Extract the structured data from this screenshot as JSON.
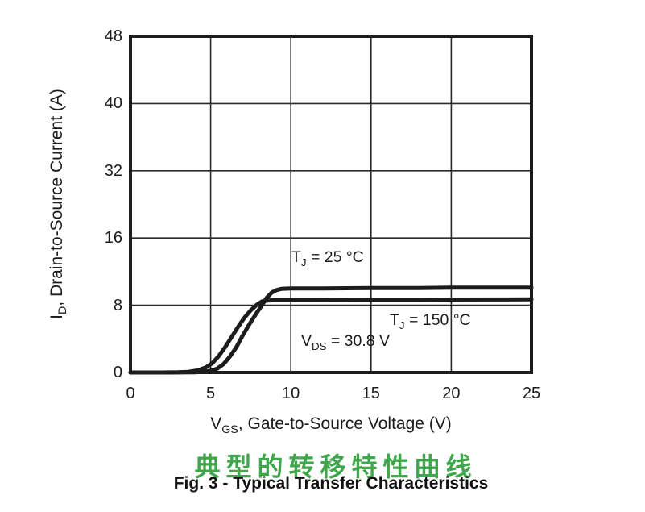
{
  "figure": {
    "title_cn": "典型的转移特性曲线",
    "title_cn_color": "#3fa64c",
    "caption": "Fig. 3 - Typical Transfer Characteristics"
  },
  "axes": {
    "x_title": {
      "pre": "V",
      "sub": "GS",
      "post": ", Gate-to-Source Voltage (V)"
    },
    "y_title": {
      "pre": "I",
      "sub": "D",
      "post": ", Drain-to-Source Current (A)"
    }
  },
  "chart_data": {
    "type": "line",
    "xlabel": "VGS, Gate-to-Source Voltage (V)",
    "ylabel": "ID, Drain-to-Source Current (A)",
    "x_range": [
      0,
      25
    ],
    "x_ticks": [
      0,
      5,
      10,
      15,
      20,
      25
    ],
    "y_tick_labels": [
      0,
      8,
      16,
      32,
      40,
      48
    ],
    "y_axis_note": "tick labels exactly as printed (equal spacing, 24 omitted)",
    "grid": true,
    "frame_color": "#1c1c1c",
    "grid_color": "#2a2a2a",
    "line_color": "#1c1c1c",
    "annotations": [
      {
        "pre": "T",
        "sub": "J",
        "post": " = 25 °C"
      },
      {
        "pre": "T",
        "sub": "J",
        "post": " = 150 °C"
      },
      {
        "pre": "V",
        "sub": "DS",
        "post": " = 30.8 V"
      }
    ],
    "series": [
      {
        "name": "TJ = 25 °C",
        "points": [
          [
            0,
            0
          ],
          [
            2,
            0
          ],
          [
            3,
            0.01
          ],
          [
            4,
            0.03
          ],
          [
            4.5,
            0.08
          ],
          [
            5,
            0.2
          ],
          [
            5.4,
            0.45
          ],
          [
            5.8,
            1.0
          ],
          [
            6.2,
            1.9
          ],
          [
            6.6,
            3.0
          ],
          [
            7,
            4.4
          ],
          [
            7.4,
            5.7
          ],
          [
            7.8,
            6.9
          ],
          [
            8.2,
            8.0
          ],
          [
            8.5,
            8.9
          ],
          [
            8.8,
            9.5
          ],
          [
            9.1,
            9.8
          ],
          [
            9.4,
            9.95
          ],
          [
            10,
            10.0
          ],
          [
            12,
            10.0
          ],
          [
            15,
            10.05
          ],
          [
            18,
            10.05
          ],
          [
            20,
            10.1
          ],
          [
            25,
            10.1
          ]
        ]
      },
      {
        "name": "TJ = 150 °C",
        "points": [
          [
            0,
            0
          ],
          [
            2,
            0
          ],
          [
            3,
            0.02
          ],
          [
            3.6,
            0.08
          ],
          [
            4.2,
            0.25
          ],
          [
            4.7,
            0.6
          ],
          [
            5.1,
            1.1
          ],
          [
            5.5,
            1.95
          ],
          [
            5.9,
            3.0
          ],
          [
            6.3,
            4.2
          ],
          [
            6.7,
            5.4
          ],
          [
            7.1,
            6.5
          ],
          [
            7.5,
            7.4
          ],
          [
            7.9,
            8.1
          ],
          [
            8.2,
            8.45
          ],
          [
            8.5,
            8.55
          ],
          [
            9,
            8.6
          ],
          [
            10,
            8.6
          ],
          [
            12,
            8.62
          ],
          [
            15,
            8.65
          ],
          [
            18,
            8.65
          ],
          [
            20,
            8.68
          ],
          [
            25,
            8.7
          ]
        ]
      }
    ]
  }
}
